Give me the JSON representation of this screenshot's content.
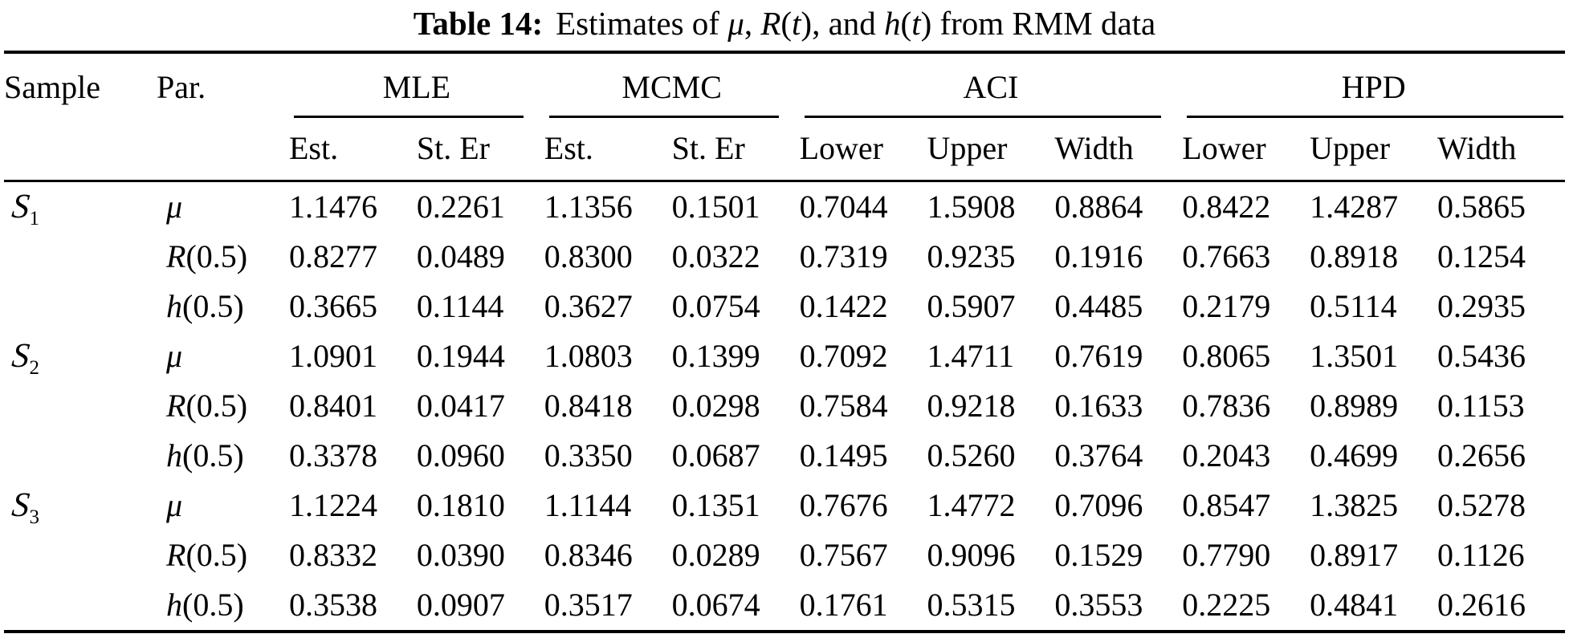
{
  "title": {
    "prefix": "Table 14:",
    "segments": [
      {
        "t": "Estimates of "
      },
      {
        "t": "μ"
      },
      {
        "t": ", "
      },
      {
        "t": "R"
      },
      {
        "t": "("
      },
      {
        "t": "t"
      },
      {
        "t": "), and "
      },
      {
        "t": "h"
      },
      {
        "t": "("
      },
      {
        "t": "t"
      },
      {
        "t": ") from RMM data"
      }
    ]
  },
  "table": {
    "headers": {
      "sample": "Sample",
      "par": "Par."
    },
    "groups": [
      {
        "label": "MLE"
      },
      {
        "label": "MCMC"
      },
      {
        "label": "ACI"
      },
      {
        "label": "HPD"
      }
    ],
    "subheaders": [
      "Est.",
      "St. Er",
      "Est.",
      "St. Er",
      "Lower",
      "Upper",
      "Width",
      "Lower",
      "Upper",
      "Width"
    ],
    "rows": [
      {
        "sample": "S",
        "sample_sub": "1",
        "par_var": "μ",
        "par_arg": "",
        "values": [
          "1.1476",
          "0.2261",
          "1.1356",
          "0.1501",
          "0.7044",
          "1.5908",
          "0.8864",
          "0.8422",
          "1.4287",
          "0.5865"
        ]
      },
      {
        "sample": "",
        "sample_sub": "",
        "par_var": "R",
        "par_arg": "(0.5)",
        "values": [
          "0.8277",
          "0.0489",
          "0.8300",
          "0.0322",
          "0.7319",
          "0.9235",
          "0.1916",
          "0.7663",
          "0.8918",
          "0.1254"
        ]
      },
      {
        "sample": "",
        "sample_sub": "",
        "par_var": "h",
        "par_arg": "(0.5)",
        "values": [
          "0.3665",
          "0.1144",
          "0.3627",
          "0.0754",
          "0.1422",
          "0.5907",
          "0.4485",
          "0.2179",
          "0.5114",
          "0.2935"
        ]
      },
      {
        "sample": "S",
        "sample_sub": "2",
        "par_var": "μ",
        "par_arg": "",
        "values": [
          "1.0901",
          "0.1944",
          "1.0803",
          "0.1399",
          "0.7092",
          "1.4711",
          "0.7619",
          "0.8065",
          "1.3501",
          "0.5436"
        ]
      },
      {
        "sample": "",
        "sample_sub": "",
        "par_var": "R",
        "par_arg": "(0.5)",
        "values": [
          "0.8401",
          "0.0417",
          "0.8418",
          "0.0298",
          "0.7584",
          "0.9218",
          "0.1633",
          "0.7836",
          "0.8989",
          "0.1153"
        ]
      },
      {
        "sample": "",
        "sample_sub": "",
        "par_var": "h",
        "par_arg": "(0.5)",
        "values": [
          "0.3378",
          "0.0960",
          "0.3350",
          "0.0687",
          "0.1495",
          "0.5260",
          "0.3764",
          "0.2043",
          "0.4699",
          "0.2656"
        ]
      },
      {
        "sample": "S",
        "sample_sub": "3",
        "par_var": "μ",
        "par_arg": "",
        "values": [
          "1.1224",
          "0.1810",
          "1.1144",
          "0.1351",
          "0.7676",
          "1.4772",
          "0.7096",
          "0.8547",
          "1.3825",
          "0.5278"
        ]
      },
      {
        "sample": "",
        "sample_sub": "",
        "par_var": "R",
        "par_arg": "(0.5)",
        "values": [
          "0.8332",
          "0.0390",
          "0.8346",
          "0.0289",
          "0.7567",
          "0.9096",
          "0.1529",
          "0.7790",
          "0.8917",
          "0.1126"
        ]
      },
      {
        "sample": "",
        "sample_sub": "",
        "par_var": "h",
        "par_arg": "(0.5)",
        "values": [
          "0.3538",
          "0.0907",
          "0.3517",
          "0.0674",
          "0.1761",
          "0.5315",
          "0.3553",
          "0.2225",
          "0.4841",
          "0.2616"
        ]
      }
    ]
  }
}
